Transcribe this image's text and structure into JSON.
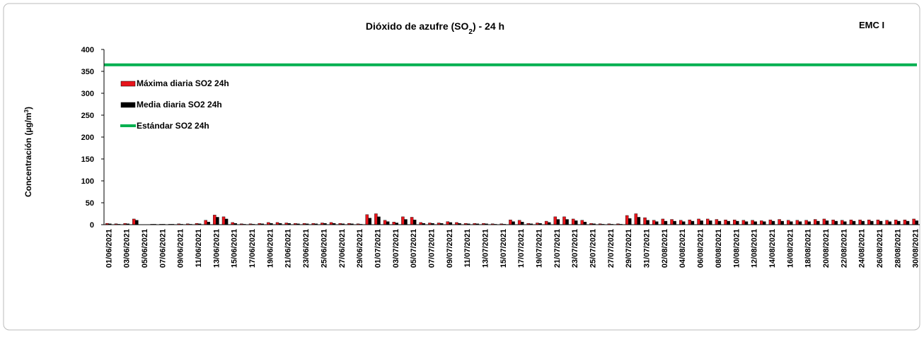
{
  "chart_data": {
    "type": "bar",
    "title": "Dióxido de azufre (SO",
    "title_sub": "2",
    "title_end": ") - 24 h",
    "annotation": "EMC I",
    "ylabel": "Concentración (µg/m",
    "ylabel_sup": "3",
    "ylabel_end": ")",
    "categories": [
      "01/06/2021",
      null,
      "03/06/2021",
      null,
      "05/06/2021",
      null,
      "07/06/2021",
      null,
      "09/06/2021",
      null,
      "11/06/2021",
      null,
      "13/06/2021",
      null,
      "15/06/2021",
      null,
      "17/06/2021",
      null,
      "19/06/2021",
      null,
      "21/06/2021",
      null,
      "23/06/2021",
      null,
      "25/06/2021",
      null,
      "27/06/2021",
      null,
      "29/06/2021",
      null,
      "01/07/2021",
      null,
      "03/07/2021",
      null,
      "05/07/2021",
      null,
      "07/07/2021",
      null,
      "09/07/2021",
      null,
      "11/07/2021",
      null,
      "13/07/2021",
      null,
      "15/07/2021",
      null,
      "17/07/2021",
      null,
      "19/07/2021",
      null,
      "21/07/2021",
      null,
      "23/07/2021",
      null,
      "25/07/2021",
      null,
      "27/07/2021",
      null,
      "29/07/2021",
      null,
      "31/07/2021",
      null,
      "02/08/2021",
      null,
      "04/08/2021",
      null,
      "06/08/2021",
      null,
      "08/08/2021",
      null,
      "10/08/2021",
      null,
      "12/08/2021",
      null,
      "14/08/2021",
      null,
      "16/08/2021",
      null,
      "18/08/2021",
      null,
      "20/08/2021",
      null,
      "22/08/2021",
      null,
      "24/08/2021",
      null,
      "26/08/2021",
      null,
      "28/08/2021",
      null,
      "30/08/2021"
    ],
    "series": [
      {
        "name": "Máxima diaria SO2 24h",
        "color": "#e8141b",
        "values": [
          3,
          2,
          3,
          13,
          0,
          1,
          1,
          1,
          2,
          2,
          3,
          10,
          22,
          18,
          5,
          2,
          2,
          3,
          5,
          5,
          4,
          3,
          3,
          3,
          4,
          5,
          3,
          3,
          2,
          23,
          25,
          10,
          6,
          18,
          17,
          5,
          4,
          4,
          7,
          5,
          3,
          3,
          3,
          2,
          2,
          11,
          10,
          3,
          4,
          8,
          18,
          18,
          13,
          10,
          3,
          2,
          2,
          2,
          21,
          25,
          16,
          10,
          13,
          12,
          10,
          11,
          13,
          13,
          12,
          11,
          11,
          10,
          10,
          9,
          11,
          12,
          10,
          10,
          10,
          12,
          13,
          11,
          10,
          11,
          11,
          11,
          11,
          10,
          11,
          11,
          13
        ]
      },
      {
        "name": "Media diaria SO2 24h",
        "color": "#000000",
        "values": [
          2,
          1,
          2,
          10,
          0,
          1,
          1,
          1,
          1,
          1,
          2,
          6,
          17,
          13,
          3,
          1,
          1,
          2,
          3,
          3,
          3,
          2,
          2,
          2,
          3,
          3,
          2,
          2,
          1,
          15,
          18,
          7,
          4,
          12,
          11,
          3,
          3,
          3,
          5,
          3,
          2,
          2,
          2,
          1,
          1,
          7,
          6,
          2,
          3,
          5,
          12,
          12,
          9,
          6,
          2,
          1,
          1,
          1,
          14,
          17,
          10,
          7,
          8,
          8,
          7,
          8,
          9,
          9,
          8,
          8,
          8,
          7,
          7,
          7,
          8,
          8,
          7,
          7,
          7,
          8,
          9,
          8,
          7,
          8,
          8,
          8,
          8,
          7,
          8,
          8,
          9
        ]
      },
      {
        "name": "Estándar SO2 24h",
        "color": "#00b050",
        "type": "line",
        "value": 365
      }
    ],
    "ylim": [
      0,
      400
    ],
    "yticks": [
      0,
      50,
      100,
      150,
      200,
      250,
      300,
      350,
      400
    ],
    "grid": false
  }
}
